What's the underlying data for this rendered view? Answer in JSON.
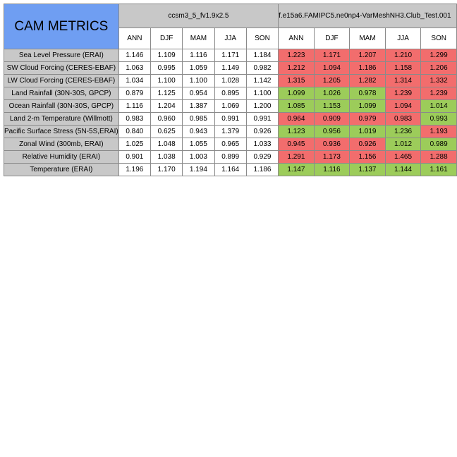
{
  "table_title": "CAM METRICS",
  "groups": [
    {
      "label": "ccsm3_5_fv1.9x2.5"
    },
    {
      "label": "f.e15a6.FAMIPC5.ne0np4-VarMeshNH3.Club_Test.001"
    }
  ],
  "seasons": [
    "ANN",
    "DJF",
    "MAM",
    "JJA",
    "SON"
  ],
  "colors": {
    "worse": "#f26d6d",
    "better": "#9ccc5a",
    "header_blue": "#6f9ef2",
    "header_gray": "#c8c8c8"
  },
  "rows": [
    {
      "label": "Sea Level Pressure (ERAI)",
      "base": [
        "1.146",
        "1.109",
        "1.116",
        "1.171",
        "1.184"
      ],
      "test": [
        "1.223",
        "1.171",
        "1.207",
        "1.210",
        "1.299"
      ],
      "status": [
        "worse",
        "worse",
        "worse",
        "worse",
        "worse"
      ]
    },
    {
      "label": "SW Cloud Forcing (CERES-EBAF)",
      "base": [
        "1.063",
        "0.995",
        "1.059",
        "1.149",
        "0.982"
      ],
      "test": [
        "1.212",
        "1.094",
        "1.186",
        "1.158",
        "1.206"
      ],
      "status": [
        "worse",
        "worse",
        "worse",
        "worse",
        "worse"
      ]
    },
    {
      "label": "LW Cloud Forcing (CERES-EBAF)",
      "base": [
        "1.034",
        "1.100",
        "1.100",
        "1.028",
        "1.142"
      ],
      "test": [
        "1.315",
        "1.205",
        "1.282",
        "1.314",
        "1.332"
      ],
      "status": [
        "worse",
        "worse",
        "worse",
        "worse",
        "worse"
      ]
    },
    {
      "label": "Land Rainfall (30N-30S, GPCP)",
      "base": [
        "0.879",
        "1.125",
        "0.954",
        "0.895",
        "1.100"
      ],
      "test": [
        "1.099",
        "1.026",
        "0.978",
        "1.239",
        "1.239"
      ],
      "status": [
        "better",
        "better",
        "better",
        "worse",
        "worse"
      ]
    },
    {
      "label": "Ocean Rainfall (30N-30S, GPCP)",
      "base": [
        "1.116",
        "1.204",
        "1.387",
        "1.069",
        "1.200"
      ],
      "test": [
        "1.085",
        "1.153",
        "1.099",
        "1.094",
        "1.014"
      ],
      "status": [
        "better",
        "better",
        "better",
        "worse",
        "better"
      ]
    },
    {
      "label": "Land 2-m Temperature (Willmott)",
      "base": [
        "0.983",
        "0.960",
        "0.985",
        "0.991",
        "0.991"
      ],
      "test": [
        "0.964",
        "0.909",
        "0.979",
        "0.983",
        "0.993"
      ],
      "status": [
        "worse",
        "worse",
        "worse",
        "worse",
        "better"
      ]
    },
    {
      "label": "Pacific Surface Stress (5N-5S,ERAI)",
      "base": [
        "0.840",
        "0.625",
        "0.943",
        "1.379",
        "0.926"
      ],
      "test": [
        "1.123",
        "0.956",
        "1.019",
        "1.236",
        "1.193"
      ],
      "status": [
        "better",
        "better",
        "better",
        "better",
        "worse"
      ]
    },
    {
      "label": "Zonal Wind (300mb, ERAI)",
      "base": [
        "1.025",
        "1.048",
        "1.055",
        "0.965",
        "1.033"
      ],
      "test": [
        "0.945",
        "0.936",
        "0.926",
        "1.012",
        "0.989"
      ],
      "status": [
        "worse",
        "worse",
        "worse",
        "better",
        "better"
      ]
    },
    {
      "label": "Relative Humidity (ERAI)",
      "base": [
        "0.901",
        "1.038",
        "1.003",
        "0.899",
        "0.929"
      ],
      "test": [
        "1.291",
        "1.173",
        "1.156",
        "1.465",
        "1.288"
      ],
      "status": [
        "worse",
        "worse",
        "worse",
        "worse",
        "worse"
      ]
    },
    {
      "label": "Temperature (ERAI)",
      "base": [
        "1.196",
        "1.170",
        "1.194",
        "1.164",
        "1.186"
      ],
      "test": [
        "1.147",
        "1.116",
        "1.137",
        "1.144",
        "1.161"
      ],
      "status": [
        "better",
        "better",
        "better",
        "better",
        "better"
      ]
    }
  ]
}
